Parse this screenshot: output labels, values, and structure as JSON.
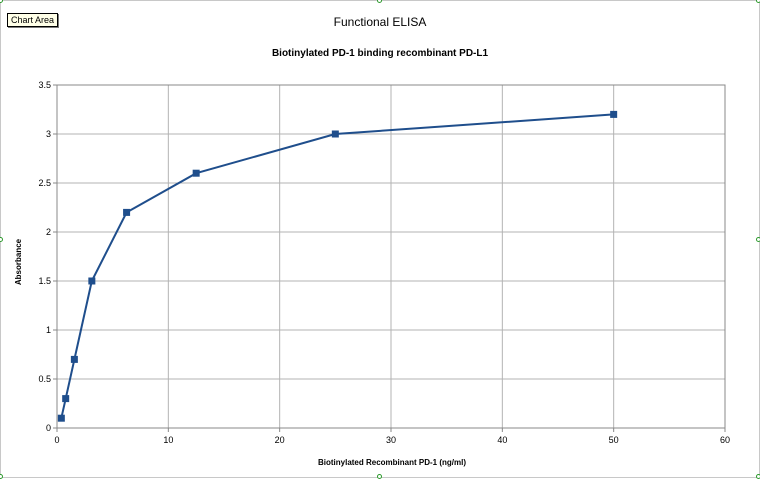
{
  "tooltip": {
    "label": "Chart Area"
  },
  "chart_data": {
    "type": "scatter",
    "title": "Functional ELISA",
    "subtitle": "Biotinylated PD-1 binding recombinant PD-L1",
    "xlabel": "Biotinylated Recombinant PD-1 (ng/ml)",
    "ylabel": "Absorbance",
    "xlim": [
      0,
      60
    ],
    "ylim": [
      0,
      3.5
    ],
    "x_ticks": [
      "0",
      "10",
      "20",
      "30",
      "40",
      "50",
      "60"
    ],
    "y_ticks": [
      "0",
      "0.5",
      "1",
      "1.5",
      "2",
      "2.5",
      "3",
      "3.5"
    ],
    "grid": true,
    "legend": "none",
    "series": [
      {
        "x": [
          0.39,
          0.78,
          1.56,
          3.13,
          6.25,
          12.5,
          25,
          50
        ],
        "y": [
          0.1,
          0.3,
          0.7,
          1.5,
          2.2,
          2.6,
          3.0,
          3.2
        ],
        "color": "#1f4e8c",
        "marker": "square"
      }
    ]
  }
}
